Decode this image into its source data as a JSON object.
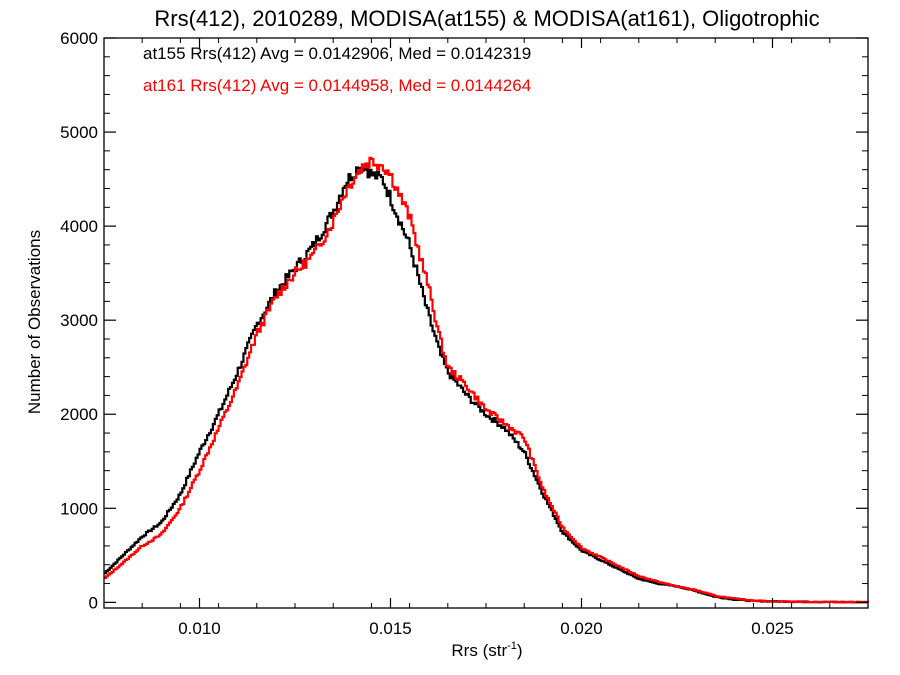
{
  "chart_data": {
    "type": "line",
    "title": "Rrs(412), 2010289, MODISA(at155) & MODISA(at161), Oligotrophic",
    "xlabel": "Rrs (str",
    "xlabel_sup": "-1",
    "xlabel_end": ")",
    "ylabel": "Number of Observations",
    "xlim": [
      0.0075,
      0.0275
    ],
    "ylim": [
      -60,
      6000
    ],
    "x_ticks": [
      0.01,
      0.015,
      0.02,
      0.025
    ],
    "x_tick_labels": [
      "0.010",
      "0.015",
      "0.020",
      "0.025"
    ],
    "y_ticks": [
      0,
      1000,
      2000,
      3000,
      4000,
      5000,
      6000
    ],
    "y_tick_labels": [
      "0",
      "1000",
      "2000",
      "3000",
      "4000",
      "5000",
      "6000"
    ],
    "grid": false,
    "legend": "annotations top-left",
    "annotations": [
      {
        "text": "at155 Rrs(412) Avg = 0.0142906, Med = 0.0142319",
        "color": "#000000"
      },
      {
        "text": "at161 Rrs(412) Avg = 0.0144958, Med = 0.0144264",
        "color": "#ff0000"
      }
    ],
    "series": [
      {
        "color": "#000000",
        "x": [
          0.0075,
          0.008,
          0.0085,
          0.009,
          0.0095,
          0.01,
          0.0105,
          0.011,
          0.0115,
          0.012,
          0.0125,
          0.013,
          0.0135,
          0.0138,
          0.0141,
          0.0143,
          0.0145,
          0.0148,
          0.015,
          0.0155,
          0.016,
          0.0163,
          0.0165,
          0.017,
          0.0175,
          0.018,
          0.0185,
          0.019,
          0.0195,
          0.02,
          0.0205,
          0.021,
          0.0215,
          0.022,
          0.0225,
          0.023,
          0.0235,
          0.024,
          0.0245,
          0.025,
          0.026,
          0.0275
        ],
        "y": [
          300,
          500,
          700,
          850,
          1150,
          1600,
          2000,
          2450,
          2950,
          3300,
          3550,
          3800,
          4150,
          4450,
          4600,
          4650,
          4550,
          4500,
          4300,
          3800,
          3050,
          2650,
          2450,
          2200,
          2000,
          1850,
          1600,
          1150,
          750,
          550,
          450,
          350,
          250,
          200,
          170,
          120,
          60,
          30,
          15,
          10,
          5,
          2
        ]
      },
      {
        "color": "#ff0000",
        "x": [
          0.0075,
          0.008,
          0.0085,
          0.009,
          0.0095,
          0.01,
          0.0105,
          0.011,
          0.0115,
          0.012,
          0.0125,
          0.013,
          0.0135,
          0.0138,
          0.0141,
          0.0143,
          0.0145,
          0.0148,
          0.015,
          0.0155,
          0.016,
          0.0163,
          0.0165,
          0.017,
          0.0175,
          0.018,
          0.0185,
          0.019,
          0.0195,
          0.02,
          0.0205,
          0.021,
          0.0215,
          0.022,
          0.0225,
          0.023,
          0.0235,
          0.024,
          0.0245,
          0.025,
          0.026,
          0.0275
        ],
        "y": [
          250,
          420,
          600,
          720,
          1000,
          1400,
          1850,
          2300,
          2850,
          3250,
          3500,
          3700,
          4050,
          4350,
          4550,
          4650,
          4700,
          4650,
          4550,
          4100,
          3350,
          2800,
          2500,
          2300,
          2050,
          1900,
          1750,
          1200,
          800,
          580,
          480,
          380,
          280,
          220,
          170,
          130,
          70,
          40,
          20,
          10,
          6,
          2
        ]
      }
    ]
  }
}
